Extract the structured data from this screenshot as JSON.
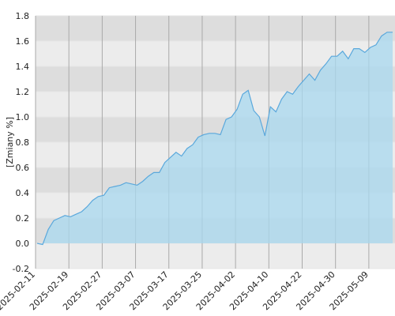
{
  "chart_data": {
    "type": "area",
    "y_label": "[Zmiany %]",
    "categories": [
      "2025-02-11",
      null,
      null,
      null,
      null,
      null,
      "2025-02-19",
      null,
      null,
      null,
      null,
      null,
      "2025-02-27",
      null,
      null,
      null,
      null,
      null,
      "2025-03-07",
      null,
      null,
      null,
      null,
      null,
      "2025-03-17",
      null,
      null,
      null,
      null,
      null,
      "2025-03-25",
      null,
      null,
      null,
      null,
      null,
      "2025-04-02",
      null,
      null,
      null,
      null,
      null,
      "2025-04-10",
      null,
      null,
      null,
      null,
      null,
      "2025-04-22",
      null,
      null,
      null,
      null,
      null,
      "2025-04-30",
      null,
      null,
      null,
      null,
      null,
      "2025-05-09",
      null,
      null,
      null,
      null
    ],
    "values": [
      0.0,
      -0.01,
      0.11,
      0.18,
      0.2,
      0.22,
      0.21,
      0.23,
      0.25,
      0.29,
      0.34,
      0.37,
      0.38,
      0.44,
      0.45,
      0.46,
      0.48,
      0.47,
      0.46,
      0.49,
      0.53,
      0.56,
      0.56,
      0.64,
      0.68,
      0.72,
      0.69,
      0.75,
      0.78,
      0.84,
      0.86,
      0.87,
      0.87,
      0.86,
      0.98,
      1.0,
      1.06,
      1.18,
      1.21,
      1.05,
      1.0,
      0.85,
      1.08,
      1.04,
      1.14,
      1.2,
      1.18,
      1.24,
      1.29,
      1.34,
      1.29,
      1.37,
      1.42,
      1.48,
      1.48,
      1.52,
      1.46,
      1.54,
      1.54,
      1.51,
      1.55,
      1.57,
      1.64,
      1.67,
      1.67
    ],
    "color": "#5aa8dc",
    "ylim": [
      -0.2,
      1.8
    ],
    "yticks": [
      -0.2,
      {
        "value": 0,
        "label": "0.0"
      },
      0.2,
      0.4,
      0.6,
      0.8,
      {
        "value": 1,
        "label": "1.0"
      },
      1.2,
      1.4,
      1.6,
      1.8
    ],
    "grid": true
  }
}
